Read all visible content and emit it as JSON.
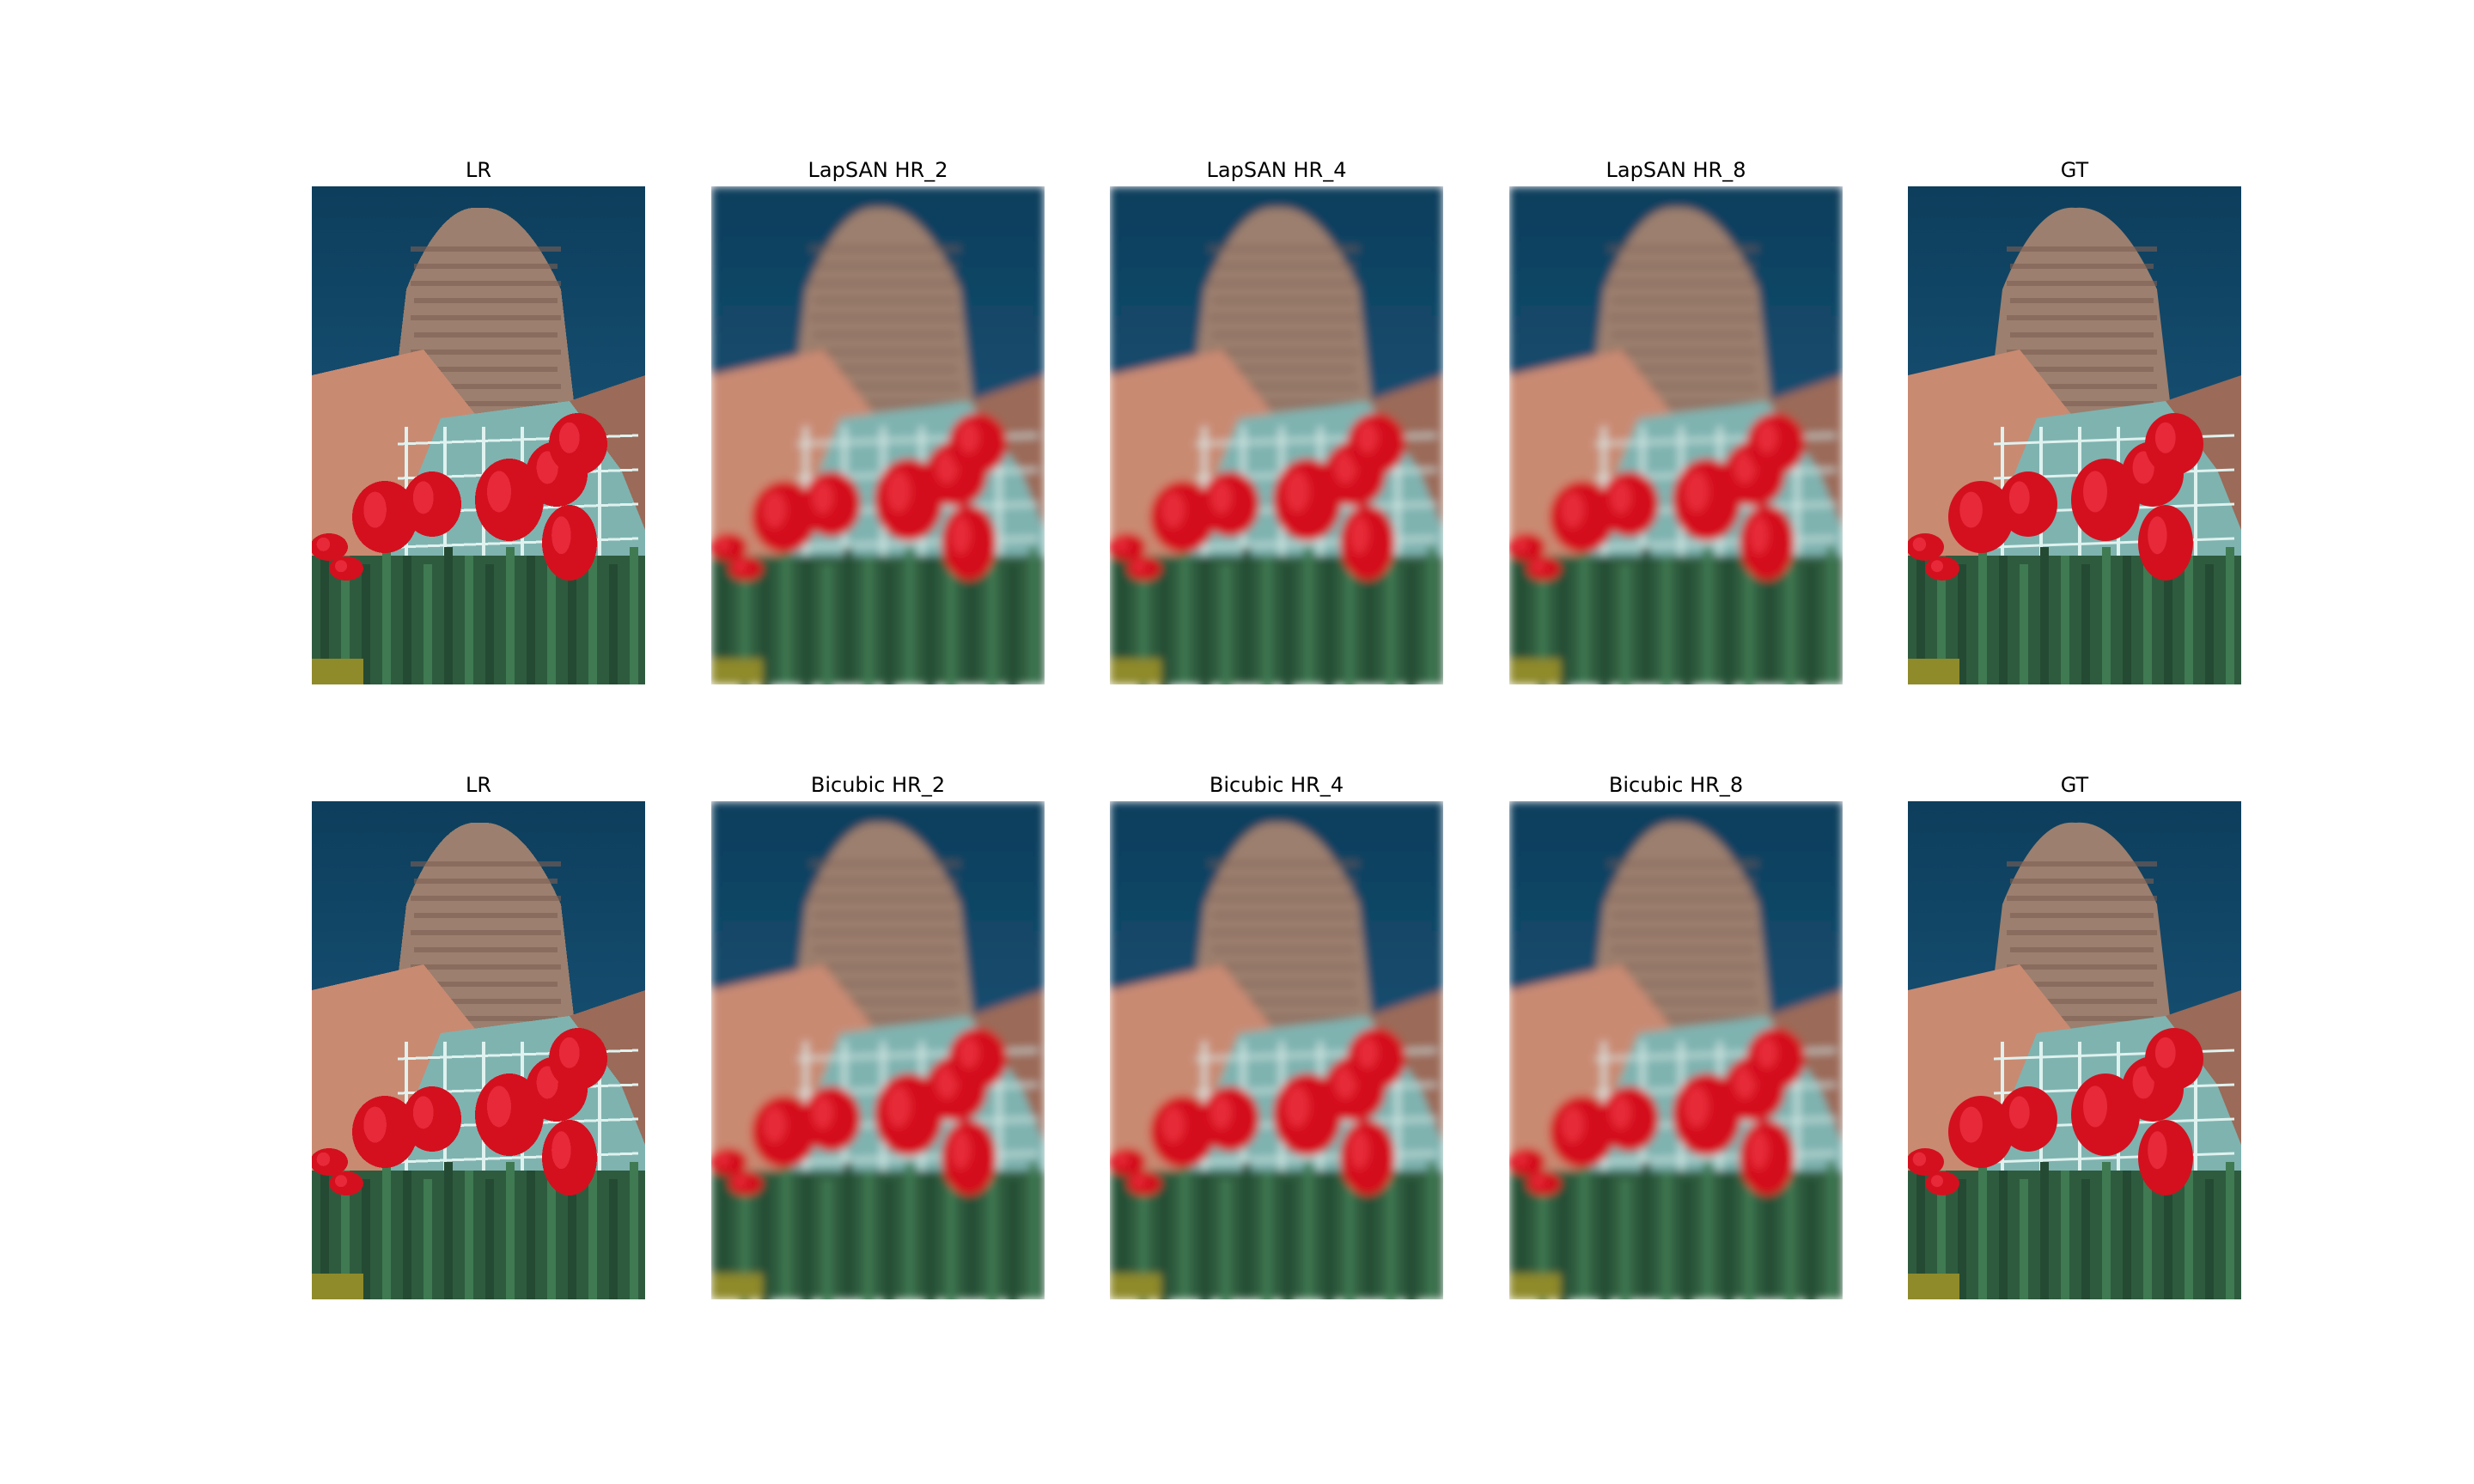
{
  "figure": {
    "rows": [
      {
        "panels": [
          {
            "title": "LR",
            "blur": 0,
            "pixelated": true
          },
          {
            "title": "LapSAN HR_2",
            "blur": 5,
            "pixelated": false
          },
          {
            "title": "LapSAN HR_4",
            "blur": 5,
            "pixelated": false
          },
          {
            "title": "LapSAN HR_8",
            "blur": 5,
            "pixelated": false
          },
          {
            "title": "GT",
            "blur": 0,
            "pixelated": false
          }
        ]
      },
      {
        "panels": [
          {
            "title": "LR",
            "blur": 0,
            "pixelated": true
          },
          {
            "title": "Bicubic HR_2",
            "blur": 5,
            "pixelated": false
          },
          {
            "title": "Bicubic HR_4",
            "blur": 5,
            "pixelated": false
          },
          {
            "title": "Bicubic HR_8",
            "blur": 5,
            "pixelated": false
          },
          {
            "title": "GT",
            "blur": 0,
            "pixelated": false
          }
        ]
      }
    ]
  },
  "colors": {
    "sky": "#1f5f86",
    "sky_top": "#0d3e5c",
    "tower": "#9c7f6e",
    "brick": "#c98a72",
    "glass": "#7fb3b0",
    "tulip": "#d4101e",
    "stem": "#2e5b3e"
  },
  "icons": [
    "photo-building-tulips"
  ]
}
